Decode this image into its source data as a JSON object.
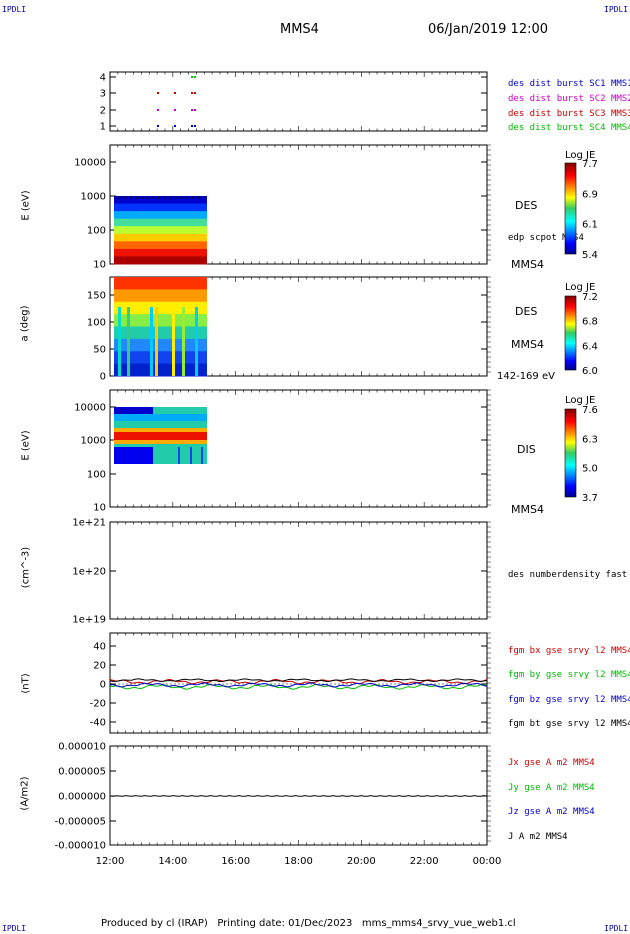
{
  "corners": {
    "tl": "IPDLI",
    "tr": "IPDLI",
    "bl": "IPDLI",
    "br": "IPDLI"
  },
  "header": {
    "title": "MMS4",
    "datetime": "06/Jan/2019 12:00"
  },
  "footer": {
    "text": "Produced by cl (IRAP)   Printing date: 01/Dec/2023   mms_mms4_srvy_vue_web1.cl"
  },
  "colors": {
    "mms1": "#0000cc",
    "mms2": "#cc00cc",
    "mms3": "#cc0000",
    "mms4": "#00cc00",
    "bx": "#cc0000",
    "by": "#00bb00",
    "bz": "#0000cc",
    "bt": "#000000"
  },
  "chart_data": [
    {
      "type": "scatter",
      "panel": "burst",
      "yticks": [
        "4",
        "3",
        "2",
        "1"
      ],
      "legend": [
        "des dist burst SC1 MMS1",
        "des dist burst SC2 MMS2",
        "des dist burst SC3 MMS3",
        "des dist burst SC4 MMS4"
      ]
    },
    {
      "type": "heatmap",
      "panel": "des-energy",
      "ylabel": "E (eV)",
      "yscale": "log",
      "yticks": [
        "10000",
        "1000",
        "100",
        "10"
      ],
      "ylim": [
        10,
        10000
      ],
      "colorbar": {
        "title": "Log JE",
        "ticks": [
          "7.7",
          "6.9",
          "6.1",
          "5.4"
        ]
      },
      "labels": [
        "DES",
        "edp scpot MMS4",
        "MMS4"
      ]
    },
    {
      "type": "heatmap",
      "panel": "des-pitch",
      "ylabel": "a (deg)",
      "yticks": [
        "150",
        "100",
        "50",
        "0"
      ],
      "ylim": [
        0,
        180
      ],
      "colorbar": {
        "title": "Log JE",
        "ticks": [
          "7.2",
          "6.8",
          "6.4",
          "6.0"
        ]
      },
      "labels": [
        "DES",
        "MMS4",
        "142-169 eV"
      ]
    },
    {
      "type": "heatmap",
      "panel": "dis-energy",
      "ylabel": "E (eV)",
      "yscale": "log",
      "yticks": [
        "10000",
        "1000",
        "100",
        "10"
      ],
      "ylim": [
        10,
        10000
      ],
      "colorbar": {
        "title": "Log JE",
        "ticks": [
          "7.6",
          "6.3",
          "5.0",
          "3.7"
        ]
      },
      "labels": [
        "DIS",
        "MMS4"
      ]
    },
    {
      "type": "line",
      "panel": "density",
      "ylabel": "(cm^-3)",
      "yscale": "log",
      "yticks": [
        "1e+21",
        "1e+20",
        "1e+19"
      ],
      "labels": [
        "des numberdensity fast M"
      ]
    },
    {
      "type": "line",
      "panel": "fgm",
      "ylabel": "(nT)",
      "yticks": [
        "40",
        "20",
        "0",
        "-20",
        "-40"
      ],
      "ylim": [
        -50,
        50
      ],
      "series": [
        {
          "name": "fgm bx gse srvy l2 MMS4"
        },
        {
          "name": "fgm by gse srvy l2 MMS4"
        },
        {
          "name": "fgm bz gse srvy l2 MMS4"
        },
        {
          "name": "fgm bt gse srvy l2 MMS4"
        }
      ]
    },
    {
      "type": "line",
      "panel": "current",
      "ylabel": "(A/m2)",
      "yticks": [
        "0.000010",
        "0.000005",
        "0.000000",
        "-0.000005",
        "-0.000010"
      ],
      "ylim": [
        -1e-05,
        1e-05
      ],
      "series": [
        {
          "name": "Jx gse A m2 MMS4"
        },
        {
          "name": "Jy gse A m2 MMS4"
        },
        {
          "name": "Jz gse A m2 MMS4"
        },
        {
          "name": "J A m2 MMS4"
        }
      ]
    }
  ],
  "xaxis": {
    "ticks": [
      "12:00",
      "14:00",
      "16:00",
      "18:00",
      "20:00",
      "22:00",
      "00:00"
    ]
  }
}
